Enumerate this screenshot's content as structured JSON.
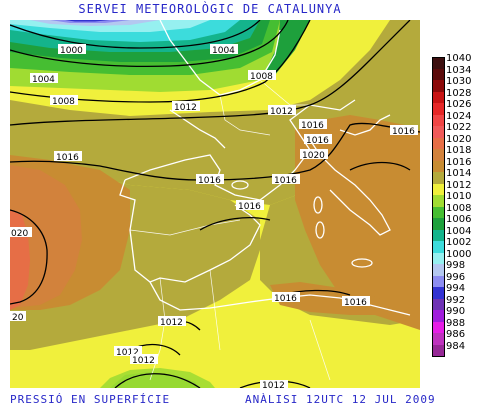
{
  "header": {
    "title": "SERVEI METEOROLÒGIC DE CATALUNYA"
  },
  "footer": {
    "product": "PRESSIÓ EN SUPERFÍCIE",
    "analysis": "ANÀLISI 12UTC 12 JUL 2009"
  },
  "legend": {
    "items": [
      {
        "label": "1040",
        "color": "#3c0f0f"
      },
      {
        "label": "1034",
        "color": "#5a0a0a"
      },
      {
        "label": "1030",
        "color": "#8c0a0a"
      },
      {
        "label": "1028",
        "color": "#c81414"
      },
      {
        "label": "1026",
        "color": "#e62828"
      },
      {
        "label": "1024",
        "color": "#f04646"
      },
      {
        "label": "1022",
        "color": "#f05a5a"
      },
      {
        "label": "1020",
        "color": "#e66e46"
      },
      {
        "label": "1018",
        "color": "#d2823c"
      },
      {
        "label": "1016",
        "color": "#c88c32"
      },
      {
        "label": "1014",
        "color": "#b4aa3c"
      },
      {
        "label": "1012",
        "color": "#f0f03c"
      },
      {
        "label": "1010",
        "color": "#a0dc32"
      },
      {
        "label": "1008",
        "color": "#46be32"
      },
      {
        "label": "1006",
        "color": "#1ea03c"
      },
      {
        "label": "1004",
        "color": "#14b48c"
      },
      {
        "label": "1002",
        "color": "#3cdcdc"
      },
      {
        "label": "1000",
        "color": "#96f0f0"
      },
      {
        "label": "998",
        "color": "#b4c8f0"
      },
      {
        "label": "996",
        "color": "#8c8cf0"
      },
      {
        "label": "994",
        "color": "#3232d2"
      },
      {
        "label": "992",
        "color": "#6e32b4"
      },
      {
        "label": "990",
        "color": "#a01edc"
      },
      {
        "label": "988",
        "color": "#e61ee6"
      },
      {
        "label": "986",
        "color": "#be32be"
      },
      {
        "label": "984",
        "color": "#962896"
      }
    ]
  },
  "isobar_labels": [
    {
      "text": "1000"
    },
    {
      "text": "1004"
    },
    {
      "text": "1004"
    },
    {
      "text": "1008"
    },
    {
      "text": "1008"
    },
    {
      "text": "1012"
    },
    {
      "text": "1012"
    },
    {
      "text": "1016"
    },
    {
      "text": "1016"
    },
    {
      "text": "1016"
    },
    {
      "text": "1016"
    },
    {
      "text": "1016"
    },
    {
      "text": "1016"
    },
    {
      "text": "1016"
    },
    {
      "text": "1020"
    },
    {
      "text": "020"
    },
    {
      "text": "20"
    },
    {
      "text": "1012"
    },
    {
      "text": "1012"
    },
    {
      "text": "1012"
    },
    {
      "text": "1016"
    },
    {
      "text": "1016"
    },
    {
      "text": "1012"
    }
  ]
}
